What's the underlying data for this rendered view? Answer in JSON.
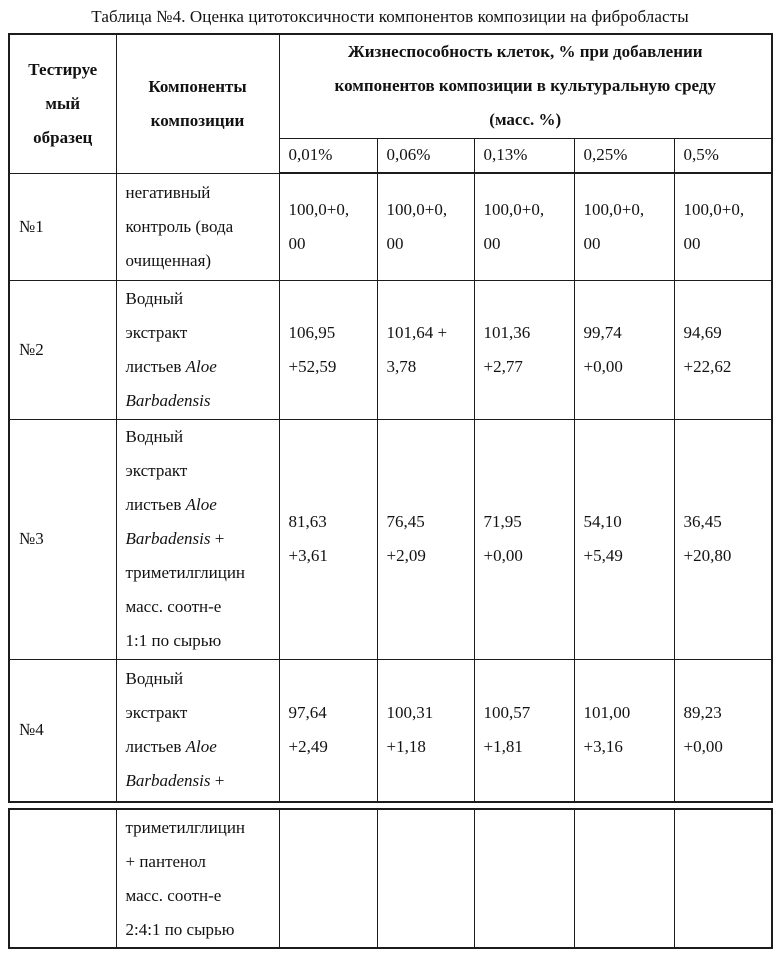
{
  "title": "Таблица №4. Оценка цитотоксичности компонентов композиции на фибробласты",
  "table": {
    "header": {
      "sample_lines": [
        [
          {
            "t": "Тестируе"
          }
        ],
        [
          {
            "t": "мый"
          }
        ],
        [
          {
            "t": "образец"
          }
        ]
      ],
      "components_lines": [
        [
          {
            "t": "Компоненты"
          }
        ],
        [
          {
            "t": "композиции"
          }
        ]
      ],
      "viability_lines": [
        [
          {
            "t": "Жизнеспособность клеток, % при добавлении"
          }
        ],
        [
          {
            "t": "компонентов композиции в культуральную среду"
          }
        ],
        [
          {
            "t": "(масс. %)"
          }
        ]
      ],
      "concentrations": [
        "0,01%",
        "0,06%",
        "0,13%",
        "0,25%",
        "0,5%"
      ]
    },
    "rows": [
      {
        "sample": "№1",
        "component_lines": [
          [
            {
              "t": "негативный"
            }
          ],
          [
            {
              "t": "контроль (вода"
            }
          ],
          [
            {
              "t": "очищенная)"
            }
          ]
        ],
        "values": [
          "100,0+0,\n00",
          "100,0+0,\n00",
          "100,0+0,\n00",
          "100,0+0,\n00",
          "100,0+0,\n00"
        ]
      },
      {
        "sample": "№2",
        "component_lines": [
          [
            {
              "t": "Водный"
            }
          ],
          [
            {
              "t": "экстракт"
            }
          ],
          [
            {
              "t": "листьев "
            },
            {
              "t": "Aloe",
              "i": true
            }
          ],
          [
            {
              "t": "Barbadensis",
              "i": true
            }
          ]
        ],
        "values": [
          "106,95\n+52,59",
          "101,64 +\n3,78",
          "101,36\n+2,77",
          "99,74\n+0,00",
          "94,69\n+22,62"
        ]
      },
      {
        "sample": "№3",
        "component_lines": [
          [
            {
              "t": "Водный"
            }
          ],
          [
            {
              "t": "экстракт"
            }
          ],
          [
            {
              "t": "листьев "
            },
            {
              "t": "Aloe",
              "i": true
            }
          ],
          [
            {
              "t": "Barbadensis",
              "i": true
            },
            {
              "t": " +"
            }
          ],
          [
            {
              "t": "триметилглицин"
            }
          ],
          [
            {
              "t": "масс. соотн-е"
            }
          ],
          [
            {
              "t": "1:1 по сырью"
            }
          ]
        ],
        "values": [
          "81,63\n+3,61",
          "76,45\n+2,09",
          "71,95\n+0,00",
          "54,10\n+5,49",
          "36,45\n+20,80"
        ]
      },
      {
        "sample": "№4",
        "component_lines": [
          [
            {
              "t": "Водный"
            }
          ],
          [
            {
              "t": "экстракт"
            }
          ],
          [
            {
              "t": "листьев "
            },
            {
              "t": "Aloe",
              "i": true
            }
          ],
          [
            {
              "t": "Barbadensis",
              "i": true
            },
            {
              "t": " +"
            }
          ]
        ],
        "values": [
          "97,64\n+2,49",
          "100,31\n+1,18",
          "100,57\n+1,81",
          "101,00\n+3,16",
          "89,23\n+0,00"
        ]
      }
    ],
    "fragment_row": {
      "sample": "",
      "component_lines": [
        [
          {
            "t": "триметилглицин"
          }
        ],
        [
          {
            "t": "+ пантенол"
          }
        ],
        [
          {
            "t": "масс. соотн-е"
          }
        ],
        [
          {
            "t": "2:4:1 по сырью"
          }
        ]
      ],
      "values": [
        "",
        "",
        "",
        "",
        ""
      ]
    }
  }
}
